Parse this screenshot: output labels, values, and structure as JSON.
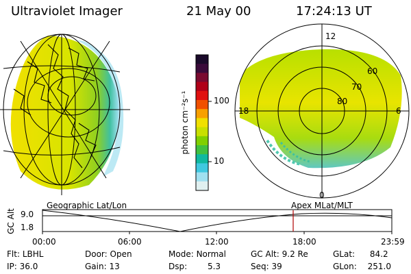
{
  "header": {
    "instrument": "Ultraviolet Imager",
    "date": "21 May 00",
    "time": "17:24:13 UT"
  },
  "colorbar": {
    "unit_label": "photon cm⁻²s⁻¹",
    "ticks": [
      "100",
      "10"
    ],
    "colors": [
      "#1a0a2a",
      "#3a0a3a",
      "#7a0a30",
      "#b00018",
      "#e01010",
      "#f05000",
      "#f8a000",
      "#f0e000",
      "#c8e000",
      "#80d000",
      "#40c040",
      "#10b8a0",
      "#40c8e0",
      "#a0e0f0",
      "#e0f0f0"
    ]
  },
  "polar_plot": {
    "mlt_labels": {
      "top": "12",
      "left": "18",
      "right": "6",
      "bottom": "0"
    },
    "lat_labels": [
      "60",
      "70",
      "80"
    ]
  },
  "timeline": {
    "y_axis_label": "GC Alt",
    "y_ticks": [
      "9.0",
      "1.8"
    ],
    "left_title": "Geographic Lat/Lon",
    "right_title": "Apex MLat/MLT",
    "x_ticks": [
      "00:00",
      "06:00",
      "12:00",
      "18:00",
      "23:59"
    ],
    "marker_color": "#b00000"
  },
  "status": {
    "row1": [
      {
        "label": "Flt:",
        "value": "LBHL"
      },
      {
        "label": "Door:",
        "value": "Open"
      },
      {
        "label": "Mode:",
        "value": "Normal"
      },
      {
        "label": "GC Alt:",
        "value": "9.2 Re"
      },
      {
        "label": "GLat:",
        "value": "84.2"
      }
    ],
    "row2": [
      {
        "label": "IP:",
        "value": "36.0"
      },
      {
        "label": "Gain:",
        "value": "13"
      },
      {
        "label": "Dsp:",
        "value": "5.3"
      },
      {
        "label": "Seq:",
        "value": "39"
      },
      {
        "label": "GLon:",
        "value": "251.0"
      }
    ]
  }
}
